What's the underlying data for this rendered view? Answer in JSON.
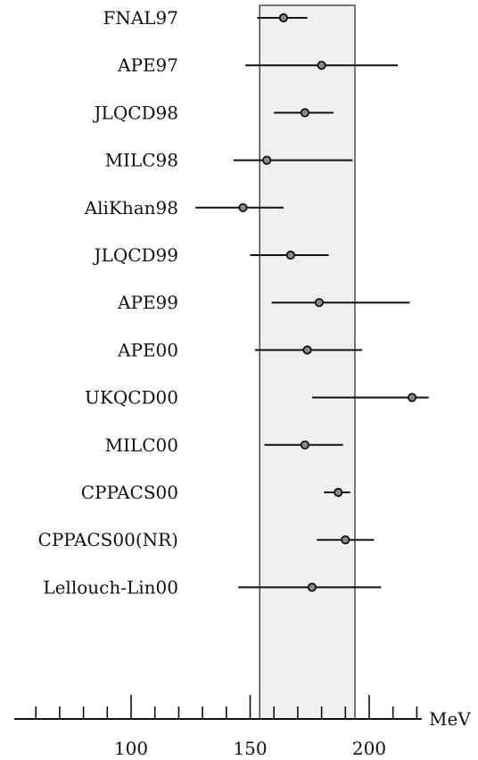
{
  "chart_data": {
    "type": "scatter",
    "xlabel": "MeV",
    "xlim": [
      45,
      222
    ],
    "band": [
      154,
      194
    ],
    "x_ticks": [
      100,
      150,
      200
    ],
    "points": [
      {
        "label": "FNAL97",
        "value": 164,
        "lo": 153,
        "hi": 174
      },
      {
        "label": "APE97",
        "value": 180,
        "lo": 148,
        "hi": 212
      },
      {
        "label": "JLQCD98",
        "value": 173,
        "lo": 160,
        "hi": 185
      },
      {
        "label": "MILC98",
        "value": 157,
        "lo": 143,
        "hi": 193
      },
      {
        "label": "AliKhan98",
        "value": 147,
        "lo": 127,
        "hi": 164
      },
      {
        "label": "JLQCD99",
        "value": 167,
        "lo": 150,
        "hi": 183
      },
      {
        "label": "APE99",
        "value": 179,
        "lo": 159,
        "hi": 217
      },
      {
        "label": "APE00",
        "value": 174,
        "lo": 152,
        "hi": 197
      },
      {
        "label": "UKQCD00",
        "value": 218,
        "lo": 176,
        "hi": 225
      },
      {
        "label": "MILC00",
        "value": 173,
        "lo": 156,
        "hi": 189
      },
      {
        "label": "CPPACS00",
        "value": 187,
        "lo": 181,
        "hi": 192
      },
      {
        "label": "CPPACS00(NR)",
        "value": 190,
        "lo": 178,
        "hi": 202
      },
      {
        "label": "Lellouch-Lin00",
        "value": 176,
        "lo": 145,
        "hi": 205
      }
    ]
  }
}
